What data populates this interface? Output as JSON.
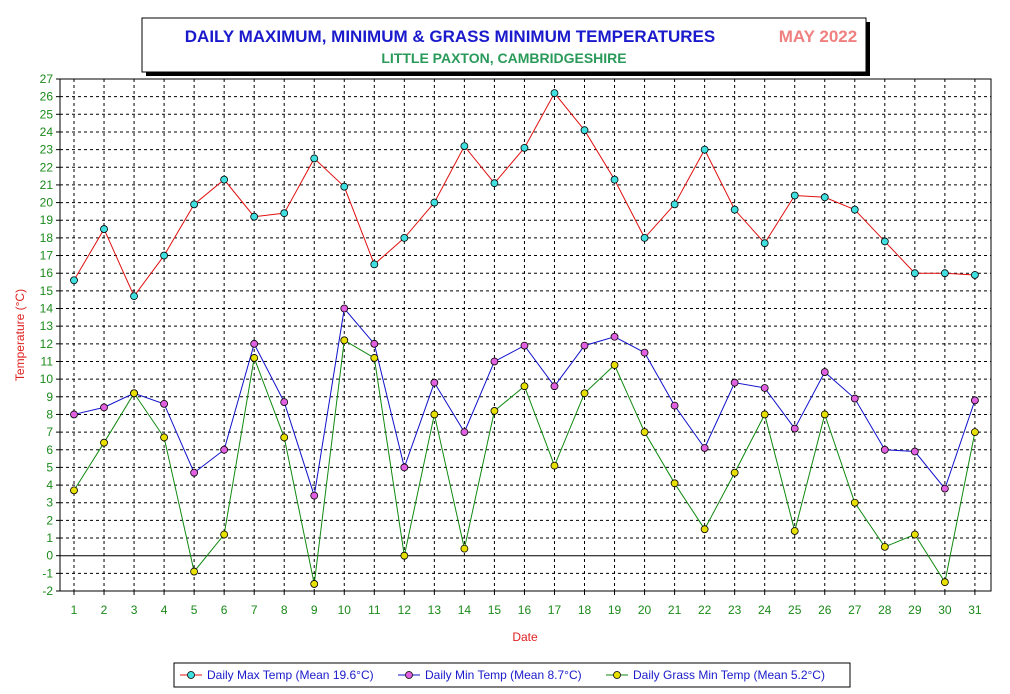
{
  "chart_data": {
    "type": "line",
    "title": "DAILY MAXIMUM, MINIMUM & GRASS MINIMUM TEMPERATURES",
    "title_month": "MAY 2022",
    "subtitle": "LITTLE PAXTON, CAMBRIDGESHIRE",
    "xlabel": "Date",
    "ylabel": "Temperature (°C)",
    "ylim": [
      -2,
      27
    ],
    "grid": true,
    "legend_position": "bottom",
    "x": [
      1,
      2,
      3,
      4,
      5,
      6,
      7,
      8,
      9,
      10,
      11,
      12,
      13,
      14,
      15,
      16,
      17,
      18,
      19,
      20,
      21,
      22,
      23,
      24,
      25,
      26,
      27,
      28,
      29,
      30,
      31
    ],
    "series": [
      {
        "name": "Daily Max Temp (Mean 19.6°C)",
        "line_color": "#e01010",
        "marker_color": "#40e0e0",
        "values": [
          15.6,
          18.5,
          14.7,
          17.0,
          19.9,
          21.3,
          19.2,
          19.4,
          22.5,
          20.9,
          16.5,
          18.0,
          20.0,
          23.2,
          21.1,
          23.1,
          26.2,
          24.1,
          21.3,
          18.0,
          19.9,
          23.0,
          19.6,
          17.7,
          20.4,
          20.3,
          19.6,
          17.8,
          16.0,
          16.0,
          15.9
        ]
      },
      {
        "name": "Daily Min Temp (Mean 8.7°C)",
        "line_color": "#1010cc",
        "marker_color": "#e060e0",
        "values": [
          8.0,
          8.4,
          9.2,
          8.6,
          4.7,
          6.0,
          12.0,
          8.7,
          3.4,
          14.0,
          12.0,
          5.0,
          9.8,
          7.0,
          11.0,
          11.9,
          9.6,
          11.9,
          12.4,
          11.5,
          8.5,
          6.1,
          9.8,
          9.5,
          7.2,
          10.4,
          8.9,
          6.0,
          5.9,
          3.8,
          8.8
        ]
      },
      {
        "name": "Daily Grass Min Temp (Mean 5.2°C)",
        "line_color": "#108a10",
        "marker_color": "#e8e000",
        "values": [
          3.7,
          6.4,
          9.2,
          6.7,
          -0.9,
          1.2,
          11.2,
          6.7,
          -1.6,
          12.2,
          11.2,
          0.0,
          8.0,
          0.4,
          8.2,
          9.6,
          5.1,
          9.2,
          10.8,
          7.0,
          4.1,
          1.5,
          4.7,
          8.0,
          1.4,
          8.0,
          3.0,
          0.5,
          1.2,
          -1.5,
          7.0
        ]
      }
    ]
  }
}
